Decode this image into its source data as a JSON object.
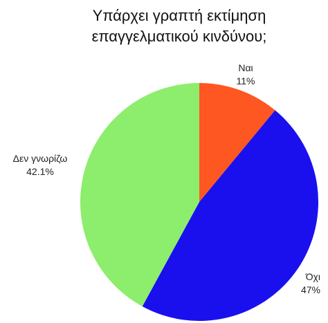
{
  "chart_data": {
    "type": "pie",
    "title_lines": [
      "Υπάρχει γραπτή εκτίμηση",
      "επαγγελματικού κινδύνου;"
    ],
    "slices": [
      {
        "label": "Ναι",
        "value_label": "11%",
        "value": 11.0,
        "color": "#ff5722"
      },
      {
        "label": "Όχι",
        "value_label": "47%",
        "value": 47.0,
        "color": "#1a10ee"
      },
      {
        "label": "Δεν γνωρίζω",
        "value_label": "42.1%",
        "value": 42.1,
        "color": "#8ded6d"
      }
    ],
    "start_angle_deg": 0,
    "direction": "clockwise",
    "legend": "none"
  }
}
